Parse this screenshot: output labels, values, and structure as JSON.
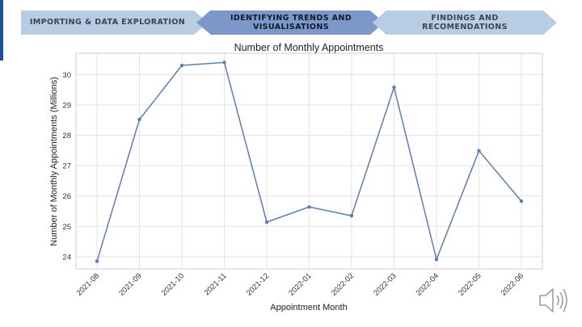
{
  "nav": {
    "steps": [
      {
        "label": "IMPORTING & DATA EXPLORATION",
        "active": false
      },
      {
        "label": "IDENTIFYING TRENDS AND\nVISUALISATIONS",
        "active": true
      },
      {
        "label": "FINDINGS AND\nRECOMENDATIONS",
        "active": false
      }
    ],
    "colors": {
      "inactive": "#b8cde3",
      "active": "#7b98c8",
      "inactive_text": "#3a4550",
      "active_text": "#0f1a2a"
    }
  },
  "chart_data": {
    "type": "line",
    "title": "Number of Monthly Appointments",
    "xlabel": "Appointment Month",
    "ylabel": "Number of Monthly Appointments (Millions)",
    "categories": [
      "2021-08",
      "2021-09",
      "2021-10",
      "2021-11",
      "2021-12",
      "2022-01",
      "2022-02",
      "2022-03",
      "2022-04",
      "2022-05",
      "2022-06"
    ],
    "values": [
      23.85,
      28.52,
      30.3,
      30.4,
      25.14,
      25.64,
      25.35,
      29.58,
      23.91,
      27.49,
      25.83
    ],
    "ylim": [
      23.6,
      30.7
    ],
    "yticks": [
      24,
      25,
      26,
      27,
      28,
      29,
      30
    ],
    "grid": true,
    "line_color": "#5b7db3"
  },
  "icons": {
    "speaker": "speaker-icon"
  }
}
